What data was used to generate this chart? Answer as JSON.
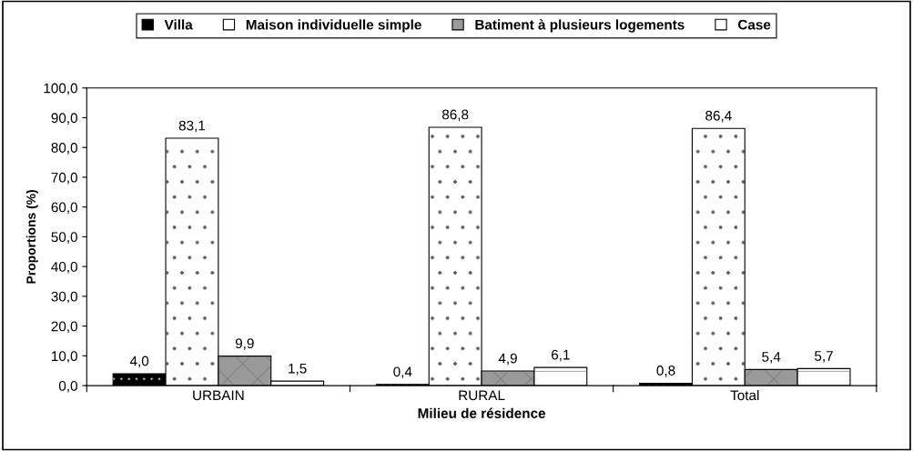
{
  "chart_data": {
    "type": "bar",
    "xlabel": "Milieu de résidence",
    "ylabel": "Proportions (%)",
    "categories": [
      "URBAIN",
      "RURAL",
      "Total"
    ],
    "series": [
      {
        "name": "Villa",
        "color": "#000000",
        "values": [
          4.0,
          0.4,
          0.8
        ],
        "value_labels": [
          "4,0",
          "0,4",
          "0,8"
        ]
      },
      {
        "name": "Maison individuelle simple",
        "color": "#ffffff",
        "values": [
          83.1,
          86.8,
          86.4
        ],
        "value_labels": [
          "83,1",
          "86,8",
          "86,4"
        ]
      },
      {
        "name": "Batiment à plusieurs logements",
        "color": "#9a9a9a",
        "values": [
          9.9,
          4.9,
          5.4
        ],
        "value_labels": [
          "9,9",
          "4,9",
          "5,4"
        ]
      },
      {
        "name": "Case",
        "color": "#ffffff",
        "values": [
          1.5,
          6.1,
          5.7
        ],
        "value_labels": [
          "1,5",
          "6,1",
          "5,7"
        ]
      }
    ],
    "ylim": [
      0,
      100
    ],
    "yticks": [
      {
        "value": 0,
        "label": "0,0"
      },
      {
        "value": 10,
        "label": "10,0"
      },
      {
        "value": 20,
        "label": "20,0"
      },
      {
        "value": 30,
        "label": "30,0"
      },
      {
        "value": 40,
        "label": "40,0"
      },
      {
        "value": 50,
        "label": "50,0"
      },
      {
        "value": 60,
        "label": "60,0"
      },
      {
        "value": 70,
        "label": "70,0"
      },
      {
        "value": 80,
        "label": "80,0"
      },
      {
        "value": 90,
        "label": "90,0"
      },
      {
        "value": 100,
        "label": "100,0"
      }
    ],
    "grid": false,
    "legend": "top"
  }
}
